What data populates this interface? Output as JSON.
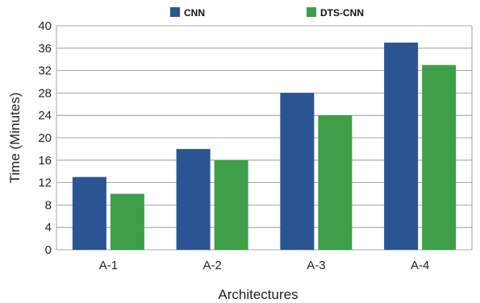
{
  "chart_data": {
    "type": "bar",
    "title": "",
    "xlabel": "Architectures",
    "ylabel": "Time (Minutes)",
    "categories": [
      "A-1",
      "A-2",
      "A-3",
      "A-4"
    ],
    "series": [
      {
        "name": "CNN",
        "color": "#2a5592",
        "values": [
          13,
          18,
          28,
          37
        ]
      },
      {
        "name": "DTS-CNN",
        "color": "#3f9e48",
        "values": [
          10,
          16,
          24,
          33
        ]
      }
    ],
    "ylim": [
      0,
      40
    ],
    "yticks": [
      "0",
      "4",
      "8",
      "12",
      "16",
      "20",
      "24",
      "28",
      "32",
      "36",
      "40"
    ],
    "grid": true,
    "legend_position": "top-center"
  }
}
